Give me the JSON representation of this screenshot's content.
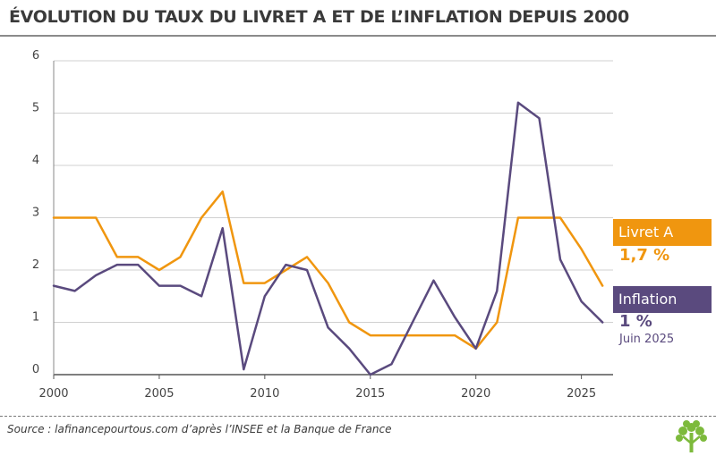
{
  "chart_data": {
    "type": "line",
    "title": "ÉVOLUTION DU TAUX DU LIVRET A ET DE L’INFLATION DEPUIS 2000",
    "xlabel": "",
    "ylabel": "",
    "ylim": [
      0,
      6
    ],
    "xlim": [
      2000,
      2026.5
    ],
    "y_ticks": [
      "0",
      "1",
      "2",
      "3",
      "4",
      "5",
      "6"
    ],
    "x_ticks": [
      "2000",
      "2005",
      "2010",
      "2015",
      "2020",
      "2025"
    ],
    "x_tick_values": [
      2000,
      2005,
      2010,
      2015,
      2020,
      2025
    ],
    "grid": true,
    "series": [
      {
        "name": "Livret A",
        "color": "#f0960f",
        "x": [
          2000,
          2001,
          2002,
          2003,
          2004,
          2005,
          2006,
          2007,
          2008,
          2009,
          2010,
          2011,
          2012,
          2013,
          2014,
          2015,
          2016,
          2017,
          2018,
          2019,
          2020,
          2021,
          2022,
          2023,
          2024,
          2025,
          2026
        ],
        "values": [
          3.0,
          3.0,
          3.0,
          2.25,
          2.25,
          2.0,
          2.25,
          3.0,
          3.5,
          1.75,
          1.75,
          2.0,
          2.25,
          1.75,
          1.0,
          0.75,
          0.75,
          0.75,
          0.75,
          0.75,
          0.5,
          1.0,
          3.0,
          3.0,
          3.0,
          2.4,
          1.7
        ]
      },
      {
        "name": "Inflation",
        "color": "#5a4a7e",
        "x": [
          2000,
          2001,
          2002,
          2003,
          2004,
          2005,
          2006,
          2007,
          2008,
          2009,
          2010,
          2011,
          2012,
          2013,
          2014,
          2015,
          2016,
          2017,
          2018,
          2019,
          2020,
          2021,
          2022,
          2023,
          2024,
          2025,
          2026
        ],
        "values": [
          1.7,
          1.6,
          1.9,
          2.1,
          2.1,
          1.7,
          1.7,
          1.5,
          2.8,
          0.1,
          1.5,
          2.1,
          2.0,
          0.9,
          0.5,
          0.0,
          0.2,
          1.0,
          1.8,
          1.1,
          0.5,
          1.6,
          5.2,
          4.9,
          2.2,
          1.4,
          1.0
        ]
      }
    ]
  },
  "legend": {
    "livret": {
      "label": "Livret A",
      "value": "1,7 %",
      "color": "#f0960f"
    },
    "inflation": {
      "label": "Inflation",
      "value": "1  %",
      "date": "Juin 2025",
      "color": "#5a4a7e"
    }
  },
  "source": "Source : lafinancepourtous.com d’après l’INSEE et la Banque de France",
  "logo": {
    "icon": "tree-logo-icon",
    "color": "#7dba3c"
  }
}
